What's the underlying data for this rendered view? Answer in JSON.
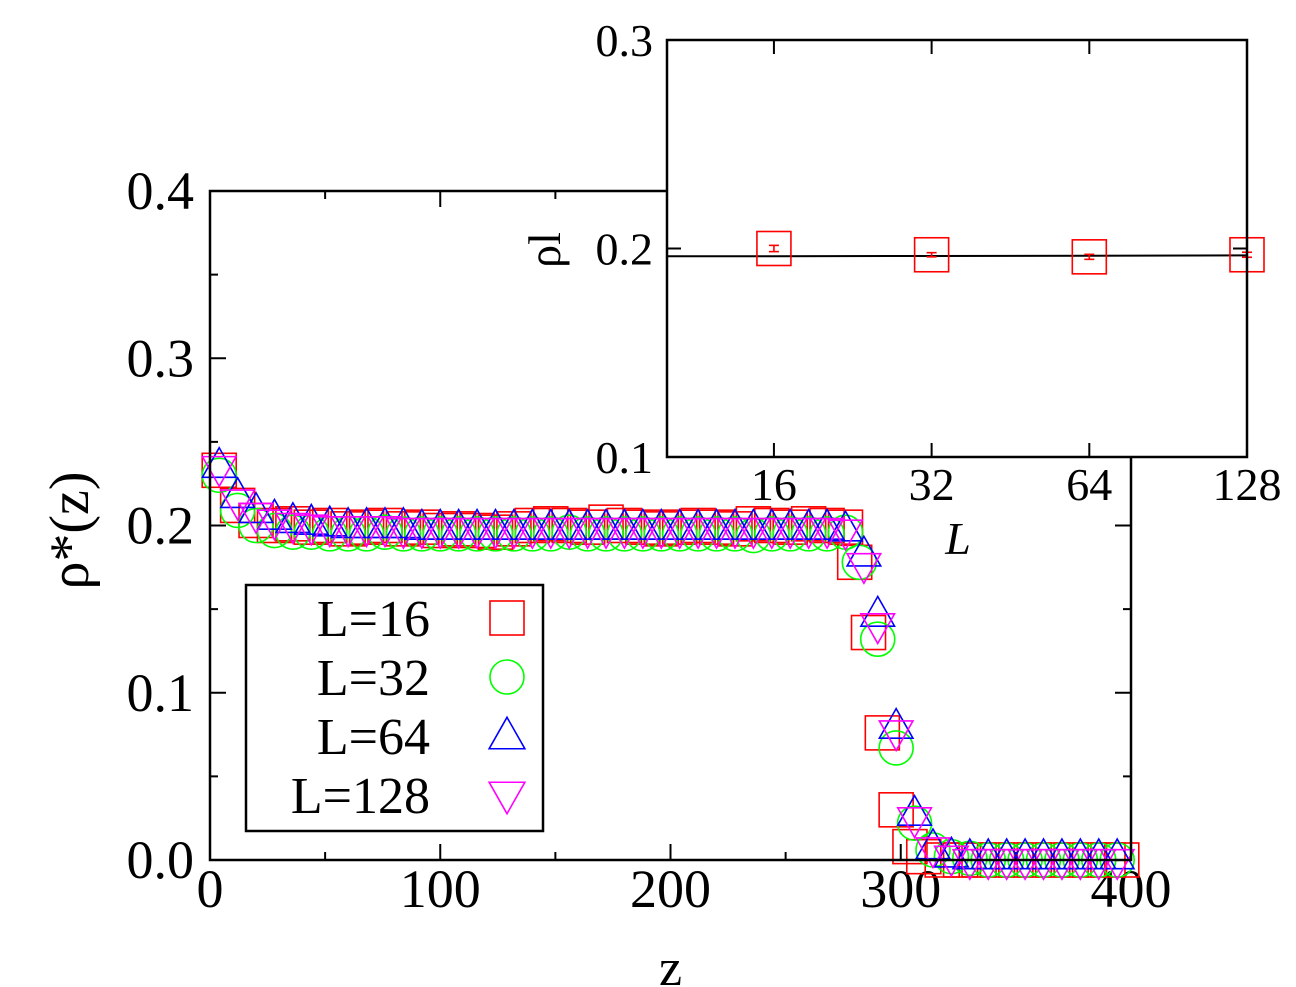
{
  "chart_data": [
    {
      "type": "scatter",
      "xlabel": "z",
      "ylabel": "ρ*(z)",
      "xlim": [
        0,
        400
      ],
      "ylim": [
        0.0,
        0.4
      ],
      "xticks": [
        "0",
        "100",
        "200",
        "300",
        "400"
      ],
      "yticks": [
        "0.0",
        "0.1",
        "0.2",
        "0.3",
        "0.4"
      ],
      "legend_position": "bottom-left",
      "series": [
        {
          "name": "L=16",
          "marker": "square",
          "color": "#ff0000",
          "x": [
            4,
            12,
            20,
            28,
            36,
            44,
            52,
            60,
            68,
            76,
            84,
            92,
            100,
            108,
            116,
            124,
            132,
            140,
            148,
            156,
            164,
            172,
            180,
            188,
            196,
            204,
            212,
            220,
            228,
            236,
            244,
            252,
            260,
            268,
            276,
            280,
            286,
            292,
            298,
            304,
            310,
            318,
            326,
            334,
            342,
            350,
            358,
            366,
            374,
            382,
            390,
            396
          ],
          "y": [
            0.233,
            0.212,
            0.203,
            0.2,
            0.201,
            0.199,
            0.2,
            0.198,
            0.199,
            0.2,
            0.198,
            0.199,
            0.197,
            0.198,
            0.197,
            0.196,
            0.198,
            0.2,
            0.201,
            0.2,
            0.199,
            0.202,
            0.2,
            0.199,
            0.198,
            0.199,
            0.2,
            0.199,
            0.198,
            0.201,
            0.2,
            0.199,
            0.201,
            0.2,
            0.199,
            0.178,
            0.136,
            0.076,
            0.03,
            0.008,
            0.002,
            0.0,
            0.0,
            0.0,
            0.0,
            0.0,
            0.0,
            0.0,
            0.0,
            0.0,
            0.0,
            0.0
          ]
        },
        {
          "name": "L=32",
          "marker": "circle",
          "color": "#00ff00",
          "x": [
            4,
            12,
            20,
            28,
            36,
            44,
            52,
            60,
            68,
            76,
            84,
            92,
            100,
            108,
            116,
            124,
            132,
            140,
            148,
            156,
            164,
            172,
            180,
            188,
            196,
            204,
            212,
            220,
            228,
            236,
            244,
            252,
            260,
            268,
            276,
            282,
            290,
            298,
            306,
            314,
            322,
            330,
            338,
            346,
            354,
            362,
            370,
            378,
            386,
            394
          ],
          "y": [
            0.23,
            0.209,
            0.2,
            0.197,
            0.196,
            0.196,
            0.195,
            0.195,
            0.195,
            0.196,
            0.195,
            0.195,
            0.195,
            0.195,
            0.195,
            0.195,
            0.195,
            0.195,
            0.195,
            0.196,
            0.195,
            0.195,
            0.195,
            0.195,
            0.195,
            0.195,
            0.195,
            0.195,
            0.195,
            0.194,
            0.195,
            0.195,
            0.195,
            0.195,
            0.196,
            0.178,
            0.132,
            0.067,
            0.022,
            0.006,
            0.002,
            0.001,
            0.0,
            0.0,
            0.0,
            0.0,
            0.0,
            0.0,
            0.0,
            0.0
          ]
        },
        {
          "name": "L=64",
          "marker": "triangle-up",
          "color": "#0000ff",
          "x": [
            4,
            12,
            20,
            28,
            36,
            44,
            52,
            60,
            68,
            76,
            84,
            92,
            100,
            108,
            116,
            124,
            132,
            140,
            148,
            156,
            164,
            172,
            180,
            188,
            196,
            204,
            212,
            220,
            228,
            236,
            244,
            252,
            260,
            268,
            276,
            284,
            290,
            298,
            306,
            314,
            322,
            330,
            338,
            346,
            354,
            362,
            370,
            378,
            386,
            394
          ],
          "y": [
            0.236,
            0.218,
            0.209,
            0.205,
            0.203,
            0.202,
            0.201,
            0.2,
            0.2,
            0.2,
            0.2,
            0.199,
            0.199,
            0.199,
            0.199,
            0.199,
            0.199,
            0.199,
            0.199,
            0.199,
            0.199,
            0.199,
            0.199,
            0.199,
            0.199,
            0.199,
            0.199,
            0.199,
            0.199,
            0.199,
            0.199,
            0.199,
            0.199,
            0.199,
            0.198,
            0.183,
            0.147,
            0.08,
            0.028,
            0.008,
            0.003,
            0.002,
            0.002,
            0.002,
            0.002,
            0.002,
            0.002,
            0.002,
            0.002,
            0.002
          ]
        },
        {
          "name": "L=128",
          "marker": "triangle-down",
          "color": "#ff00ff",
          "x": [
            4,
            12,
            20,
            28,
            36,
            44,
            52,
            60,
            68,
            76,
            84,
            92,
            100,
            108,
            116,
            124,
            132,
            140,
            148,
            156,
            164,
            172,
            180,
            188,
            196,
            204,
            212,
            220,
            228,
            236,
            244,
            252,
            260,
            268,
            276,
            284,
            290,
            298,
            306,
            314,
            322,
            330,
            338,
            346,
            354,
            362,
            370,
            378,
            386,
            394
          ],
          "y": [
            0.234,
            0.214,
            0.206,
            0.202,
            0.2,
            0.199,
            0.198,
            0.198,
            0.198,
            0.198,
            0.197,
            0.197,
            0.197,
            0.197,
            0.197,
            0.197,
            0.197,
            0.197,
            0.197,
            0.197,
            0.197,
            0.197,
            0.197,
            0.197,
            0.197,
            0.197,
            0.197,
            0.197,
            0.197,
            0.197,
            0.197,
            0.197,
            0.197,
            0.197,
            0.196,
            0.176,
            0.14,
            0.076,
            0.024,
            0.006,
            0.001,
            -0.001,
            -0.001,
            -0.001,
            -0.001,
            -0.001,
            -0.001,
            -0.001,
            -0.001,
            -0.001
          ]
        }
      ]
    },
    {
      "type": "scatter",
      "xlabel": "L",
      "ylabel": "ρl",
      "xscale": "log2",
      "xlim": [
        10,
        128
      ],
      "ylim": [
        0.1,
        0.3
      ],
      "xticks": [
        "16",
        "32",
        "64",
        "128"
      ],
      "yticks": [
        "0.1",
        "0.2",
        "0.3"
      ],
      "series": [
        {
          "name": "rho_l",
          "marker": "square",
          "color": "#ff0000",
          "x": [
            16,
            32,
            64,
            128
          ],
          "y": [
            0.2,
            0.197,
            0.196,
            0.197
          ],
          "err": [
            0.0015,
            0.001,
            0.0012,
            0.0012
          ]
        }
      ],
      "fit": {
        "x": [
          10,
          16,
          32,
          64,
          128
        ],
        "y": [
          0.1963,
          0.1963,
          0.1964,
          0.1965,
          0.1967
        ]
      }
    }
  ],
  "legend": {
    "entries": [
      "L=16",
      "L=32",
      "L=64",
      "L=128"
    ]
  }
}
